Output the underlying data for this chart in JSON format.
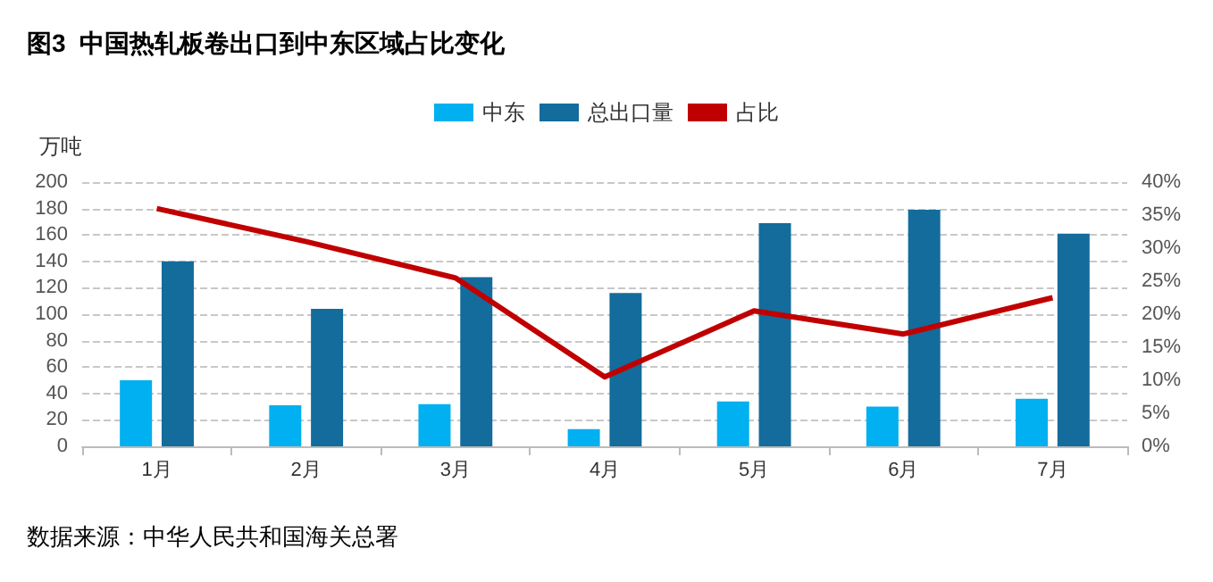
{
  "chart_data": {
    "type": "bar",
    "title": "图3  中国热轧板卷出口到中东区域占比变化",
    "ylabel": "万吨",
    "annotations": [
      "数据来源：中华人民共和国海关总署"
    ],
    "categories": [
      "1月",
      "2月",
      "3月",
      "4月",
      "5月",
      "6月",
      "7月"
    ],
    "series": [
      {
        "name": "中东",
        "color": "#00b0f0",
        "values": [
          50,
          31,
          32,
          13,
          34,
          30,
          36
        ]
      },
      {
        "name": "总出口量",
        "color": "#136c9c",
        "values": [
          140,
          104,
          128,
          116,
          169,
          179,
          161
        ]
      },
      {
        "name": "占比",
        "type": "line",
        "axis": "y2",
        "color": "#c00000",
        "marker": "none",
        "values": [
          36,
          31,
          25.5,
          10.5,
          20.5,
          17,
          22.5
        ]
      }
    ],
    "ylim": [
      0,
      200
    ],
    "yticks": [
      0,
      20,
      40,
      60,
      80,
      100,
      120,
      140,
      160,
      180,
      200
    ],
    "y2lim": [
      0,
      40
    ],
    "y2ticks": [
      {
        "value": 0,
        "label": "0%"
      },
      {
        "value": 5,
        "label": "5%"
      },
      {
        "value": 10,
        "label": "10%"
      },
      {
        "value": 15,
        "label": "15%"
      },
      {
        "value": 20,
        "label": "20%"
      },
      {
        "value": 25,
        "label": "25%"
      },
      {
        "value": 30,
        "label": "30%"
      },
      {
        "value": 35,
        "label": "35%"
      },
      {
        "value": 40,
        "label": "40%"
      }
    ],
    "grid": "y",
    "legend": "top"
  }
}
